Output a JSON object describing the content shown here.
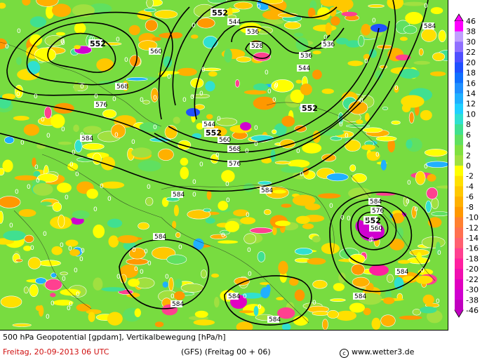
{
  "map": {
    "contour_levels": [
      {
        "value": "552"
      },
      {
        "value": "560"
      },
      {
        "value": "568"
      },
      {
        "value": "576"
      },
      {
        "value": "584"
      },
      {
        "value": "528"
      },
      {
        "value": "536"
      },
      {
        "value": "544"
      }
    ],
    "zero_label": "0"
  },
  "legend": {
    "title": "",
    "levels": [
      "46",
      "38",
      "30",
      "22",
      "20",
      "18",
      "16",
      "14",
      "12",
      "10",
      "8",
      "6",
      "4",
      "2",
      "0",
      "-2",
      "-4",
      "-6",
      "-8",
      "-10",
      "-12",
      "-14",
      "-16",
      "-18",
      "-20",
      "-22",
      "-30",
      "-38",
      "-46"
    ],
    "colors": [
      "#ff00ff",
      "#c0a0ff",
      "#9070ff",
      "#5050ff",
      "#2050ff",
      "#1070ff",
      "#2090ff",
      "#20b0ff",
      "#20d0ff",
      "#30e0d0",
      "#40e090",
      "#60e060",
      "#80e040",
      "#a0e040",
      "#ffff00",
      "#ffe000",
      "#ffc800",
      "#ffb000",
      "#ff9800",
      "#ff8030",
      "#ff7050",
      "#ff6070",
      "#ff4090",
      "#ff20a0",
      "#f010b0",
      "#e000c0",
      "#d000d0",
      "#c000c0"
    ]
  },
  "footer": {
    "line1": "500 hPa Geopotential [gpdam], Vertikalbewegung [hPa/h]",
    "date": "Freitag, 20-09-2013  06 UTC",
    "model": "(GFS)  (Freitag 00 + 06)",
    "copyright_symbol": "c",
    "site": "www.wetter3.de"
  }
}
